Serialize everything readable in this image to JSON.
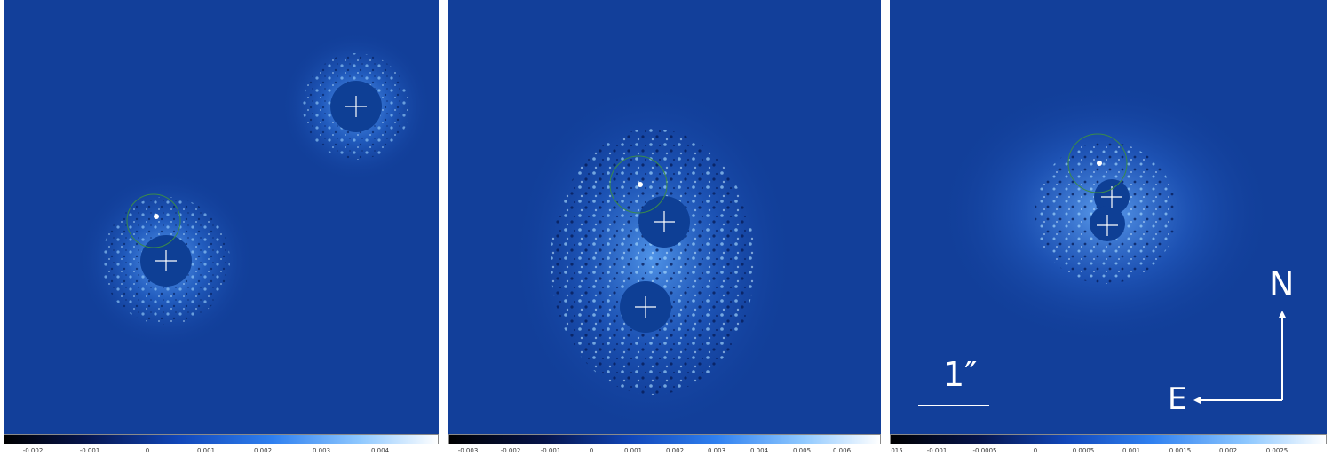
{
  "panels": [
    {
      "colorbar_ticks": [
        "-0.002",
        "-0.001",
        "0",
        "0.001",
        "0.002",
        "0.003",
        "0.004"
      ]
    },
    {
      "colorbar_ticks": [
        "-0.003",
        "-0.002",
        "-0.001",
        "0",
        "0.001",
        "0.002",
        "0.003",
        "0.004",
        "0.005",
        "0.006"
      ]
    },
    {
      "colorbar_ticks": [
        "015",
        "-0.001",
        "-0.0005",
        "0",
        "0.0005",
        "0.001",
        "0.0015",
        "0.002",
        "0.0025"
      ]
    }
  ],
  "scale_bar": {
    "label": "1″"
  },
  "compass": {
    "north": "N",
    "east": "E"
  },
  "colors": {
    "background": "#123f9a",
    "speckle_light": "#7fc4ff",
    "mask": "#0e3f95",
    "circle": "#3a8a4a",
    "cross": "#ffffff"
  }
}
